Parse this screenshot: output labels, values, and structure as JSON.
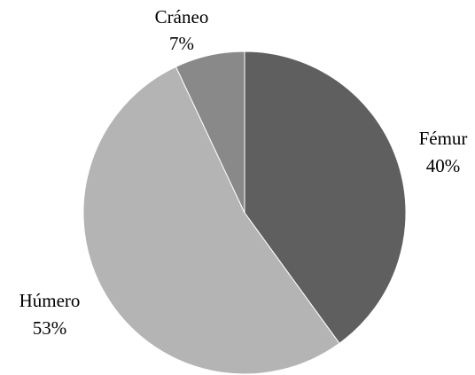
{
  "chart_data": {
    "type": "pie",
    "slices": [
      {
        "label": "Fémur",
        "value": 40,
        "value_label": "40%",
        "color": "#5f5f5f"
      },
      {
        "label": "Húmero",
        "value": 53,
        "value_label": "53%",
        "color": "#b4b4b4"
      },
      {
        "label": "Cráneo",
        "value": 7,
        "value_label": "7%",
        "color": "#898989"
      }
    ],
    "start_angle_deg": 0,
    "direction": "clockwise",
    "legend": "none"
  }
}
